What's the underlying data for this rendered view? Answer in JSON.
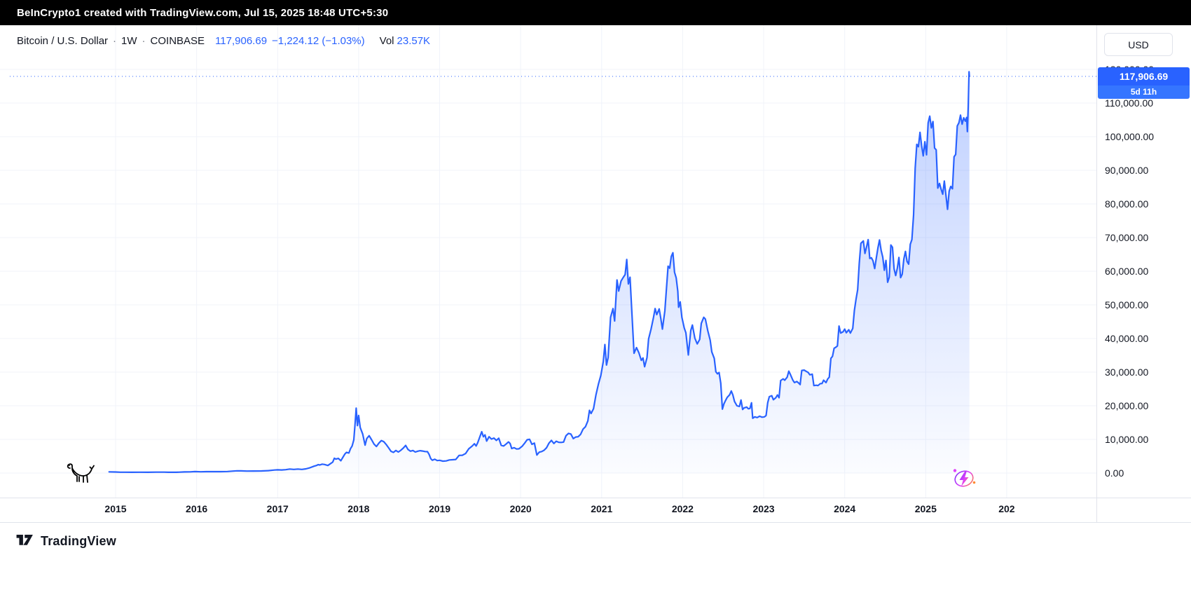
{
  "top_bar": {
    "attribution": "BeInCrypto1 created with TradingView.com, Jul 15, 2025 18:48 UTC+5:30"
  },
  "header": {
    "symbol": "Bitcoin / U.S. Dollar",
    "separator": "·",
    "interval": "1W",
    "exchange": "COINBASE",
    "price": "117,906.69",
    "change": "−1,224.12 (−1.03%)",
    "vol_label": "Vol",
    "volume": "23.57K"
  },
  "price_scale": {
    "currency_button": "USD",
    "labels": [
      "120,000.00",
      "110,000.00",
      "100,000.00",
      "90,000.00",
      "80,000.00",
      "70,000.00",
      "60,000.00",
      "50,000.00",
      "40,000.00",
      "30,000.00",
      "20,000.00",
      "10,000.00",
      "0.00"
    ],
    "price_tag": {
      "price": "117,906.69",
      "countdown": "5d 11h"
    }
  },
  "time_axis": [
    "2015",
    "2016",
    "2017",
    "2018",
    "2019",
    "2020",
    "2021",
    "2022",
    "2023",
    "2024",
    "2025",
    "202"
  ],
  "footer": {
    "logo_text": "TradingView"
  },
  "icons": {
    "watermark": "dino-icon",
    "quick_action": "flash-orbit-icon",
    "brand": "tradingview-logo-icon"
  },
  "colors": {
    "accent": "#2962FF",
    "line": "#2962FF",
    "grid": "#f0f3fa",
    "topbar_bg": "#000000",
    "text": "#131722",
    "axis_border": "#e0e3eb",
    "tag_bg": "#2962FF",
    "countdown_bg": "#3575FF",
    "area_top": "rgba(41,98,255,0.30)",
    "area_bottom": "rgba(41,98,255,0.02)"
  },
  "chart_data": {
    "type": "area",
    "title": "Bitcoin / U.S. Dollar · 1W · COINBASE",
    "xlabel": "",
    "ylabel": "USD",
    "legend": "none",
    "grid": true,
    "x_unit": "decimal_year",
    "xlim": [
      2014.87,
      2026.17
    ],
    "ylim": [
      0,
      120000
    ],
    "last_price": 117906.69,
    "points": [
      [
        2014.92,
        350
      ],
      [
        2015.0,
        315
      ],
      [
        2015.06,
        255
      ],
      [
        2015.12,
        245
      ],
      [
        2015.2,
        235
      ],
      [
        2015.3,
        240
      ],
      [
        2015.4,
        237
      ],
      [
        2015.5,
        262
      ],
      [
        2015.6,
        280
      ],
      [
        2015.65,
        230
      ],
      [
        2015.75,
        237
      ],
      [
        2015.85,
        325
      ],
      [
        2015.92,
        360
      ],
      [
        2015.98,
        430
      ],
      [
        2016.05,
        375
      ],
      [
        2016.12,
        410
      ],
      [
        2016.2,
        418
      ],
      [
        2016.3,
        420
      ],
      [
        2016.38,
        455
      ],
      [
        2016.45,
        585
      ],
      [
        2016.5,
        670
      ],
      [
        2016.55,
        655
      ],
      [
        2016.62,
        575
      ],
      [
        2016.7,
        607
      ],
      [
        2016.8,
        615
      ],
      [
        2016.88,
        700
      ],
      [
        2016.96,
        900
      ],
      [
        2017.0,
        963
      ],
      [
        2017.05,
        920
      ],
      [
        2017.1,
        1010
      ],
      [
        2017.15,
        1190
      ],
      [
        2017.2,
        1080
      ],
      [
        2017.25,
        1180
      ],
      [
        2017.3,
        1080
      ],
      [
        2017.35,
        1250
      ],
      [
        2017.4,
        1590
      ],
      [
        2017.45,
        2050
      ],
      [
        2017.48,
        2250
      ],
      [
        2017.5,
        2500
      ],
      [
        2017.52,
        2400
      ],
      [
        2017.55,
        2650
      ],
      [
        2017.58,
        2550
      ],
      [
        2017.62,
        2250
      ],
      [
        2017.65,
        2750
      ],
      [
        2017.68,
        3250
      ],
      [
        2017.7,
        4400
      ],
      [
        2017.72,
        4150
      ],
      [
        2017.75,
        4350
      ],
      [
        2017.78,
        3650
      ],
      [
        2017.8,
        4450
      ],
      [
        2017.83,
        5650
      ],
      [
        2017.85,
        6150
      ],
      [
        2017.88,
        5950
      ],
      [
        2017.9,
        7250
      ],
      [
        2017.92,
        8050
      ],
      [
        2017.94,
        9850
      ],
      [
        2017.955,
        14300
      ],
      [
        2017.97,
        19300
      ],
      [
        2017.985,
        14100
      ],
      [
        2018.0,
        17100
      ],
      [
        2018.02,
        13500
      ],
      [
        2018.05,
        11600
      ],
      [
        2018.08,
        8300
      ],
      [
        2018.1,
        10250
      ],
      [
        2018.13,
        11100
      ],
      [
        2018.16,
        9900
      ],
      [
        2018.19,
        8600
      ],
      [
        2018.22,
        7900
      ],
      [
        2018.25,
        8900
      ],
      [
        2018.28,
        9650
      ],
      [
        2018.31,
        9350
      ],
      [
        2018.34,
        8500
      ],
      [
        2018.37,
        7500
      ],
      [
        2018.4,
        6450
      ],
      [
        2018.43,
        6150
      ],
      [
        2018.46,
        6700
      ],
      [
        2018.49,
        6250
      ],
      [
        2018.52,
        6750
      ],
      [
        2018.55,
        7400
      ],
      [
        2018.58,
        8200
      ],
      [
        2018.61,
        7000
      ],
      [
        2018.64,
        6500
      ],
      [
        2018.67,
        6700
      ],
      [
        2018.7,
        6250
      ],
      [
        2018.73,
        6500
      ],
      [
        2018.76,
        6650
      ],
      [
        2018.79,
        6550
      ],
      [
        2018.82,
        6400
      ],
      [
        2018.85,
        6350
      ],
      [
        2018.87,
        5550
      ],
      [
        2018.89,
        4300
      ],
      [
        2018.91,
        3800
      ],
      [
        2018.94,
        4100
      ],
      [
        2018.97,
        3700
      ],
      [
        2019.0,
        3800
      ],
      [
        2019.04,
        3550
      ],
      [
        2019.08,
        3600
      ],
      [
        2019.12,
        3900
      ],
      [
        2019.16,
        3950
      ],
      [
        2019.2,
        4050
      ],
      [
        2019.24,
        5250
      ],
      [
        2019.28,
        5300
      ],
      [
        2019.32,
        5800
      ],
      [
        2019.36,
        7200
      ],
      [
        2019.4,
        8000
      ],
      [
        2019.43,
        8700
      ],
      [
        2019.45,
        8050
      ],
      [
        2019.47,
        9050
      ],
      [
        2019.5,
        11000
      ],
      [
        2019.52,
        12300
      ],
      [
        2019.54,
        10800
      ],
      [
        2019.56,
        11350
      ],
      [
        2019.58,
        9500
      ],
      [
        2019.61,
        10800
      ],
      [
        2019.64,
        10100
      ],
      [
        2019.67,
        10400
      ],
      [
        2019.7,
        9700
      ],
      [
        2019.73,
        10350
      ],
      [
        2019.76,
        8250
      ],
      [
        2019.79,
        8050
      ],
      [
        2019.82,
        8600
      ],
      [
        2019.85,
        9250
      ],
      [
        2019.87,
        8800
      ],
      [
        2019.89,
        7300
      ],
      [
        2019.92,
        7550
      ],
      [
        2019.95,
        7150
      ],
      [
        2019.98,
        7200
      ],
      [
        2020.02,
        8000
      ],
      [
        2020.05,
        8900
      ],
      [
        2020.08,
        9900
      ],
      [
        2020.11,
        10050
      ],
      [
        2020.14,
        8550
      ],
      [
        2020.17,
        8900
      ],
      [
        2020.2,
        5350
      ],
      [
        2020.23,
        6200
      ],
      [
        2020.26,
        6400
      ],
      [
        2020.29,
        6800
      ],
      [
        2020.32,
        7550
      ],
      [
        2020.35,
        8900
      ],
      [
        2020.38,
        9700
      ],
      [
        2020.41,
        8800
      ],
      [
        2020.44,
        9450
      ],
      [
        2020.47,
        9150
      ],
      [
        2020.5,
        9100
      ],
      [
        2020.53,
        9200
      ],
      [
        2020.56,
        11100
      ],
      [
        2020.59,
        11800
      ],
      [
        2020.62,
        11600
      ],
      [
        2020.65,
        10250
      ],
      [
        2020.68,
        10700
      ],
      [
        2020.71,
        10800
      ],
      [
        2020.74,
        11500
      ],
      [
        2020.77,
        13050
      ],
      [
        2020.8,
        13800
      ],
      [
        2020.83,
        15500
      ],
      [
        2020.85,
        18650
      ],
      [
        2020.87,
        17700
      ],
      [
        2020.9,
        19150
      ],
      [
        2020.93,
        23300
      ],
      [
        2020.96,
        26450
      ],
      [
        2020.99,
        29000
      ],
      [
        2021.02,
        33100
      ],
      [
        2021.04,
        38200
      ],
      [
        2021.06,
        32100
      ],
      [
        2021.08,
        34300
      ],
      [
        2021.11,
        46300
      ],
      [
        2021.14,
        48900
      ],
      [
        2021.16,
        45200
      ],
      [
        2021.19,
        57400
      ],
      [
        2021.21,
        54100
      ],
      [
        2021.24,
        57100
      ],
      [
        2021.27,
        58300
      ],
      [
        2021.29,
        59000
      ],
      [
        2021.31,
        63500
      ],
      [
        2021.33,
        56200
      ],
      [
        2021.35,
        58200
      ],
      [
        2021.37,
        49000
      ],
      [
        2021.4,
        35600
      ],
      [
        2021.43,
        37300
      ],
      [
        2021.46,
        35700
      ],
      [
        2021.49,
        33500
      ],
      [
        2021.51,
        34200
      ],
      [
        2021.53,
        31600
      ],
      [
        2021.56,
        34300
      ],
      [
        2021.58,
        39900
      ],
      [
        2021.61,
        42800
      ],
      [
        2021.64,
        46300
      ],
      [
        2021.66,
        48900
      ],
      [
        2021.68,
        47100
      ],
      [
        2021.71,
        48800
      ],
      [
        2021.73,
        46000
      ],
      [
        2021.75,
        42800
      ],
      [
        2021.78,
        48200
      ],
      [
        2021.8,
        54900
      ],
      [
        2021.82,
        61500
      ],
      [
        2021.84,
        60900
      ],
      [
        2021.86,
        64400
      ],
      [
        2021.88,
        65500
      ],
      [
        2021.9,
        59700
      ],
      [
        2021.92,
        58000
      ],
      [
        2021.94,
        54000
      ],
      [
        2021.95,
        49300
      ],
      [
        2021.97,
        50900
      ],
      [
        2021.99,
        46300
      ],
      [
        2022.02,
        43100
      ],
      [
        2022.04,
        41700
      ],
      [
        2022.07,
        35100
      ],
      [
        2022.1,
        42400
      ],
      [
        2022.12,
        44000
      ],
      [
        2022.15,
        40100
      ],
      [
        2022.18,
        38400
      ],
      [
        2022.21,
        39700
      ],
      [
        2022.23,
        44500
      ],
      [
        2022.26,
        46300
      ],
      [
        2022.28,
        45800
      ],
      [
        2022.31,
        42300
      ],
      [
        2022.34,
        39500
      ],
      [
        2022.36,
        36000
      ],
      [
        2022.39,
        34100
      ],
      [
        2022.41,
        30100
      ],
      [
        2022.43,
        29500
      ],
      [
        2022.45,
        29900
      ],
      [
        2022.47,
        26700
      ],
      [
        2022.49,
        19000
      ],
      [
        2022.51,
        20600
      ],
      [
        2022.53,
        21600
      ],
      [
        2022.55,
        22500
      ],
      [
        2022.58,
        23300
      ],
      [
        2022.6,
        24400
      ],
      [
        2022.62,
        23200
      ],
      [
        2022.64,
        21300
      ],
      [
        2022.67,
        20000
      ],
      [
        2022.7,
        19800
      ],
      [
        2022.72,
        21700
      ],
      [
        2022.74,
        18900
      ],
      [
        2022.76,
        19400
      ],
      [
        2022.79,
        19600
      ],
      [
        2022.81,
        19100
      ],
      [
        2022.83,
        19200
      ],
      [
        2022.85,
        20900
      ],
      [
        2022.865,
        16300
      ],
      [
        2022.89,
        16700
      ],
      [
        2022.92,
        16500
      ],
      [
        2022.95,
        16900
      ],
      [
        2022.98,
        16600
      ],
      [
        2023.01,
        16700
      ],
      [
        2023.03,
        17100
      ],
      [
        2023.05,
        20900
      ],
      [
        2023.07,
        22700
      ],
      [
        2023.1,
        23000
      ],
      [
        2023.12,
        21800
      ],
      [
        2023.15,
        22400
      ],
      [
        2023.17,
        23200
      ],
      [
        2023.19,
        22400
      ],
      [
        2023.21,
        27500
      ],
      [
        2023.24,
        28000
      ],
      [
        2023.26,
        27600
      ],
      [
        2023.29,
        28500
      ],
      [
        2023.31,
        30300
      ],
      [
        2023.33,
        29300
      ],
      [
        2023.36,
        27600
      ],
      [
        2023.38,
        26900
      ],
      [
        2023.41,
        27200
      ],
      [
        2023.43,
        26800
      ],
      [
        2023.45,
        26300
      ],
      [
        2023.47,
        30500
      ],
      [
        2023.5,
        30600
      ],
      [
        2023.52,
        30300
      ],
      [
        2023.55,
        29900
      ],
      [
        2023.57,
        29200
      ],
      [
        2023.6,
        29400
      ],
      [
        2023.62,
        26000
      ],
      [
        2023.65,
        26100
      ],
      [
        2023.67,
        26000
      ],
      [
        2023.7,
        26600
      ],
      [
        2023.72,
        26600
      ],
      [
        2023.74,
        27600
      ],
      [
        2023.77,
        26900
      ],
      [
        2023.79,
        27950
      ],
      [
        2023.81,
        28500
      ],
      [
        2023.83,
        34100
      ],
      [
        2023.85,
        34700
      ],
      [
        2023.87,
        37100
      ],
      [
        2023.89,
        37400
      ],
      [
        2023.91,
        37800
      ],
      [
        2023.93,
        43700
      ],
      [
        2023.95,
        41600
      ],
      [
        2023.98,
        42000
      ],
      [
        2024.0,
        42800
      ],
      [
        2024.02,
        41700
      ],
      [
        2024.05,
        42600
      ],
      [
        2024.07,
        41600
      ],
      [
        2024.1,
        43000
      ],
      [
        2024.12,
        48300
      ],
      [
        2024.14,
        51700
      ],
      [
        2024.16,
        54500
      ],
      [
        2024.18,
        62400
      ],
      [
        2024.2,
        68300
      ],
      [
        2024.23,
        69000
      ],
      [
        2024.25,
        65300
      ],
      [
        2024.27,
        67200
      ],
      [
        2024.29,
        69400
      ],
      [
        2024.31,
        63800
      ],
      [
        2024.33,
        64000
      ],
      [
        2024.35,
        63100
      ],
      [
        2024.37,
        60800
      ],
      [
        2024.39,
        63900
      ],
      [
        2024.41,
        66900
      ],
      [
        2024.43,
        69300
      ],
      [
        2024.45,
        66200
      ],
      [
        2024.47,
        64200
      ],
      [
        2024.49,
        60300
      ],
      [
        2024.51,
        63200
      ],
      [
        2024.53,
        56700
      ],
      [
        2024.55,
        58200
      ],
      [
        2024.57,
        67800
      ],
      [
        2024.59,
        67100
      ],
      [
        2024.61,
        60700
      ],
      [
        2024.63,
        58700
      ],
      [
        2024.65,
        60900
      ],
      [
        2024.67,
        64100
      ],
      [
        2024.69,
        58100
      ],
      [
        2024.71,
        59100
      ],
      [
        2024.73,
        63600
      ],
      [
        2024.75,
        65900
      ],
      [
        2024.77,
        62900
      ],
      [
        2024.79,
        62100
      ],
      [
        2024.81,
        68000
      ],
      [
        2024.83,
        69400
      ],
      [
        2024.85,
        76700
      ],
      [
        2024.87,
        90600
      ],
      [
        2024.89,
        97700
      ],
      [
        2024.91,
        97000
      ],
      [
        2024.93,
        101300
      ],
      [
        2024.95,
        97300
      ],
      [
        2024.97,
        94300
      ],
      [
        2024.99,
        98500
      ],
      [
        2025.01,
        94600
      ],
      [
        2025.03,
        104100
      ],
      [
        2025.05,
        106100
      ],
      [
        2025.07,
        102600
      ],
      [
        2025.09,
        104500
      ],
      [
        2025.11,
        96600
      ],
      [
        2025.13,
        96100
      ],
      [
        2025.15,
        84700
      ],
      [
        2025.17,
        86100
      ],
      [
        2025.19,
        84400
      ],
      [
        2025.21,
        82900
      ],
      [
        2025.23,
        86800
      ],
      [
        2025.25,
        82600
      ],
      [
        2025.27,
        78400
      ],
      [
        2025.29,
        83800
      ],
      [
        2025.31,
        85200
      ],
      [
        2025.33,
        84500
      ],
      [
        2025.35,
        94000
      ],
      [
        2025.37,
        94700
      ],
      [
        2025.39,
        103200
      ],
      [
        2025.41,
        104100
      ],
      [
        2025.43,
        106400
      ],
      [
        2025.45,
        103700
      ],
      [
        2025.47,
        105600
      ],
      [
        2025.49,
        104600
      ],
      [
        2025.505,
        105700
      ],
      [
        2025.515,
        101500
      ],
      [
        2025.525,
        108900
      ],
      [
        2025.535,
        119300
      ],
      [
        2025.54,
        117906.69
      ]
    ]
  }
}
